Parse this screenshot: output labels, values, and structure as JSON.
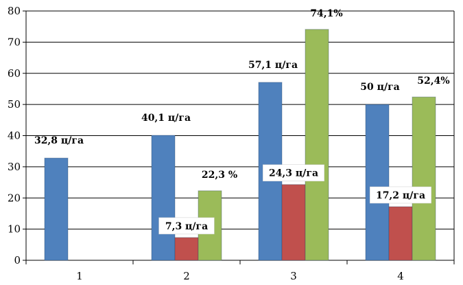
{
  "chart_data": {
    "type": "bar",
    "title": "",
    "xlabel": "",
    "ylabel": "",
    "categories": [
      "1",
      "2",
      "3",
      "4"
    ],
    "ylim": [
      0,
      80
    ],
    "yticks": [
      0,
      10,
      20,
      30,
      40,
      50,
      60,
      70,
      80
    ],
    "grid": true,
    "legend": "none",
    "series": [
      {
        "color": "#4f81bd",
        "values": [
          32.8,
          40.1,
          57.1,
          50
        ],
        "labels": [
          "32,8 ц/га",
          "40,1 ц/га",
          "57,1 ц/га",
          "50 ц/га"
        ]
      },
      {
        "color": "#c0504d",
        "values": [
          null,
          7.3,
          24.3,
          17.2
        ],
        "labels": [
          "",
          "7,3 ц/га",
          "24,3 ц/га",
          "17,2 ц/га"
        ]
      },
      {
        "color": "#9bbb59",
        "values": [
          null,
          22.3,
          74.1,
          52.4
        ],
        "labels": [
          "",
          "22,3 %",
          "74,1%",
          "52,4%"
        ]
      }
    ]
  }
}
